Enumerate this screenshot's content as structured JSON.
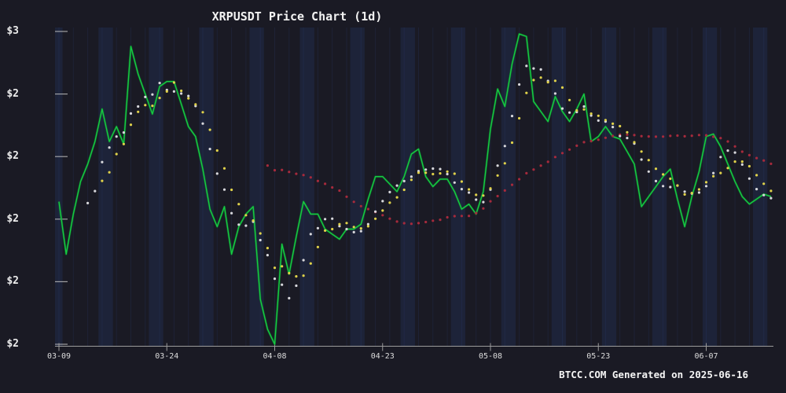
{
  "window": {
    "background_color": "#1a1a24",
    "weekend_band_color": "#223059",
    "minor_gridline_color": "#2e3e78",
    "axis_color": "#9b9b9b",
    "tick_label_color": "#ececec"
  },
  "footer": {
    "text": "BTCC.COM Generated on 2025-06-16",
    "brand": "BTCC.COM",
    "generated_date": "2025-06-16"
  },
  "chart_data": {
    "type": "line",
    "title": "XRPUSDT Price Chart (1d)",
    "symbol": "XRPUSDT",
    "interval": "1d",
    "start_date": "2025-03-09",
    "end_date": "2025-06-16",
    "frequency": "1 day per point",
    "ylim": [
      1.45,
      2.78
    ],
    "grid": {
      "weekend_bands": true,
      "minor_vertical_lines": true,
      "horizontal_lines": false
    },
    "legend_position": "none",
    "x_ticks": [
      {
        "label": "03-09",
        "day": 0
      },
      {
        "label": "03-24",
        "day": 15
      },
      {
        "label": "04-08",
        "day": 30
      },
      {
        "label": "04-23",
        "day": 45
      },
      {
        "label": "05-08",
        "day": 60
      },
      {
        "label": "05-23",
        "day": 75
      },
      {
        "label": "06-07",
        "day": 90
      }
    ],
    "y_ticks": [
      {
        "label": "$3",
        "value": 2.75
      },
      {
        "label": "$2",
        "value": 2.5
      },
      {
        "label": "$2",
        "value": 2.25
      },
      {
        "label": "$2",
        "value": 2.0
      },
      {
        "label": "$2",
        "value": 1.75
      },
      {
        "label": "$2",
        "value": 1.5
      }
    ],
    "series": [
      {
        "name": "price",
        "label": "XRPUSDT daily close (USD)",
        "type": "line",
        "color": "#17ca43",
        "values": [
          2.07,
          1.86,
          2.02,
          2.15,
          2.22,
          2.31,
          2.44,
          2.31,
          2.37,
          2.3,
          2.69,
          2.58,
          2.5,
          2.42,
          2.53,
          2.55,
          2.55,
          2.46,
          2.37,
          2.33,
          2.2,
          2.04,
          1.97,
          2.05,
          1.86,
          1.97,
          2.02,
          2.05,
          1.68,
          1.56,
          1.5,
          1.9,
          1.78,
          1.93,
          2.07,
          2.02,
          2.02,
          1.96,
          1.94,
          1.92,
          1.96,
          1.96,
          1.98,
          2.08,
          2.17,
          2.17,
          2.14,
          2.11,
          2.17,
          2.26,
          2.28,
          2.17,
          2.13,
          2.16,
          2.16,
          2.11,
          2.04,
          2.06,
          2.02,
          2.11,
          2.36,
          2.52,
          2.45,
          2.62,
          2.74,
          2.73,
          2.47,
          2.43,
          2.39,
          2.49,
          2.43,
          2.39,
          2.44,
          2.5,
          2.31,
          2.33,
          2.37,
          2.33,
          2.32,
          2.27,
          2.22,
          2.05,
          2.09,
          2.13,
          2.17,
          2.2,
          2.08,
          1.97,
          2.09,
          2.19,
          2.33,
          2.34,
          2.29,
          2.22,
          2.15,
          2.09,
          2.06,
          2.08,
          2.1,
          2.09
        ]
      },
      {
        "name": "ma5",
        "label": "5-day moving average (white dots)",
        "type": "dots",
        "color": "#d8d8dc",
        "window": 5,
        "derived_from": "price",
        "derivation": "rolling mean of price, full window required"
      },
      {
        "name": "ma7",
        "label": "7-day moving average (yellow dots)",
        "type": "dots",
        "color": "#e0d24a",
        "window": 7,
        "derived_from": "price",
        "derivation": "rolling mean of price, full window required"
      },
      {
        "name": "ma30",
        "label": "30-day moving average (red dots)",
        "type": "dots",
        "color": "#a62a3c",
        "window": 30,
        "derived_from": "price",
        "derivation": "rolling mean of price, full window required"
      }
    ]
  }
}
